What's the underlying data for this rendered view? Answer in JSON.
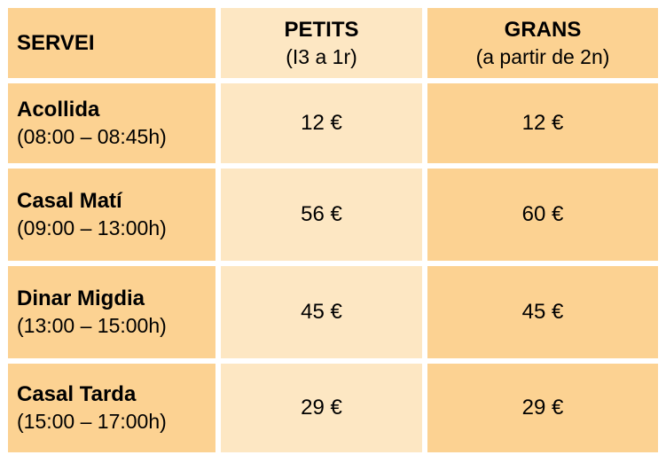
{
  "colors": {
    "header_and_side_cells": "#fcd292",
    "petits_column_cells": "#fde7c3",
    "cell_border": "#ffffff"
  },
  "header": {
    "servei": "SERVEI",
    "petits_title": "PETITS",
    "petits_sub": "(I3 a 1r)",
    "grans_title": "GRANS",
    "grans_sub": "(a partir de 2n)"
  },
  "rows": [
    {
      "name": "Acollida",
      "time": "(08:00 – 08:45h)",
      "petits": "12 €",
      "grans": "12 €"
    },
    {
      "name": "Casal Matí",
      "time": "(09:00 – 13:00h)",
      "petits": "56 €",
      "grans": "60 €"
    },
    {
      "name": "Dinar Migdia",
      "time": "(13:00 – 15:00h)",
      "petits": "45 €",
      "grans": "45 €"
    },
    {
      "name": "Casal Tarda",
      "time": "(15:00 – 17:00h)",
      "petits": "29 €",
      "grans": "29 €"
    }
  ]
}
